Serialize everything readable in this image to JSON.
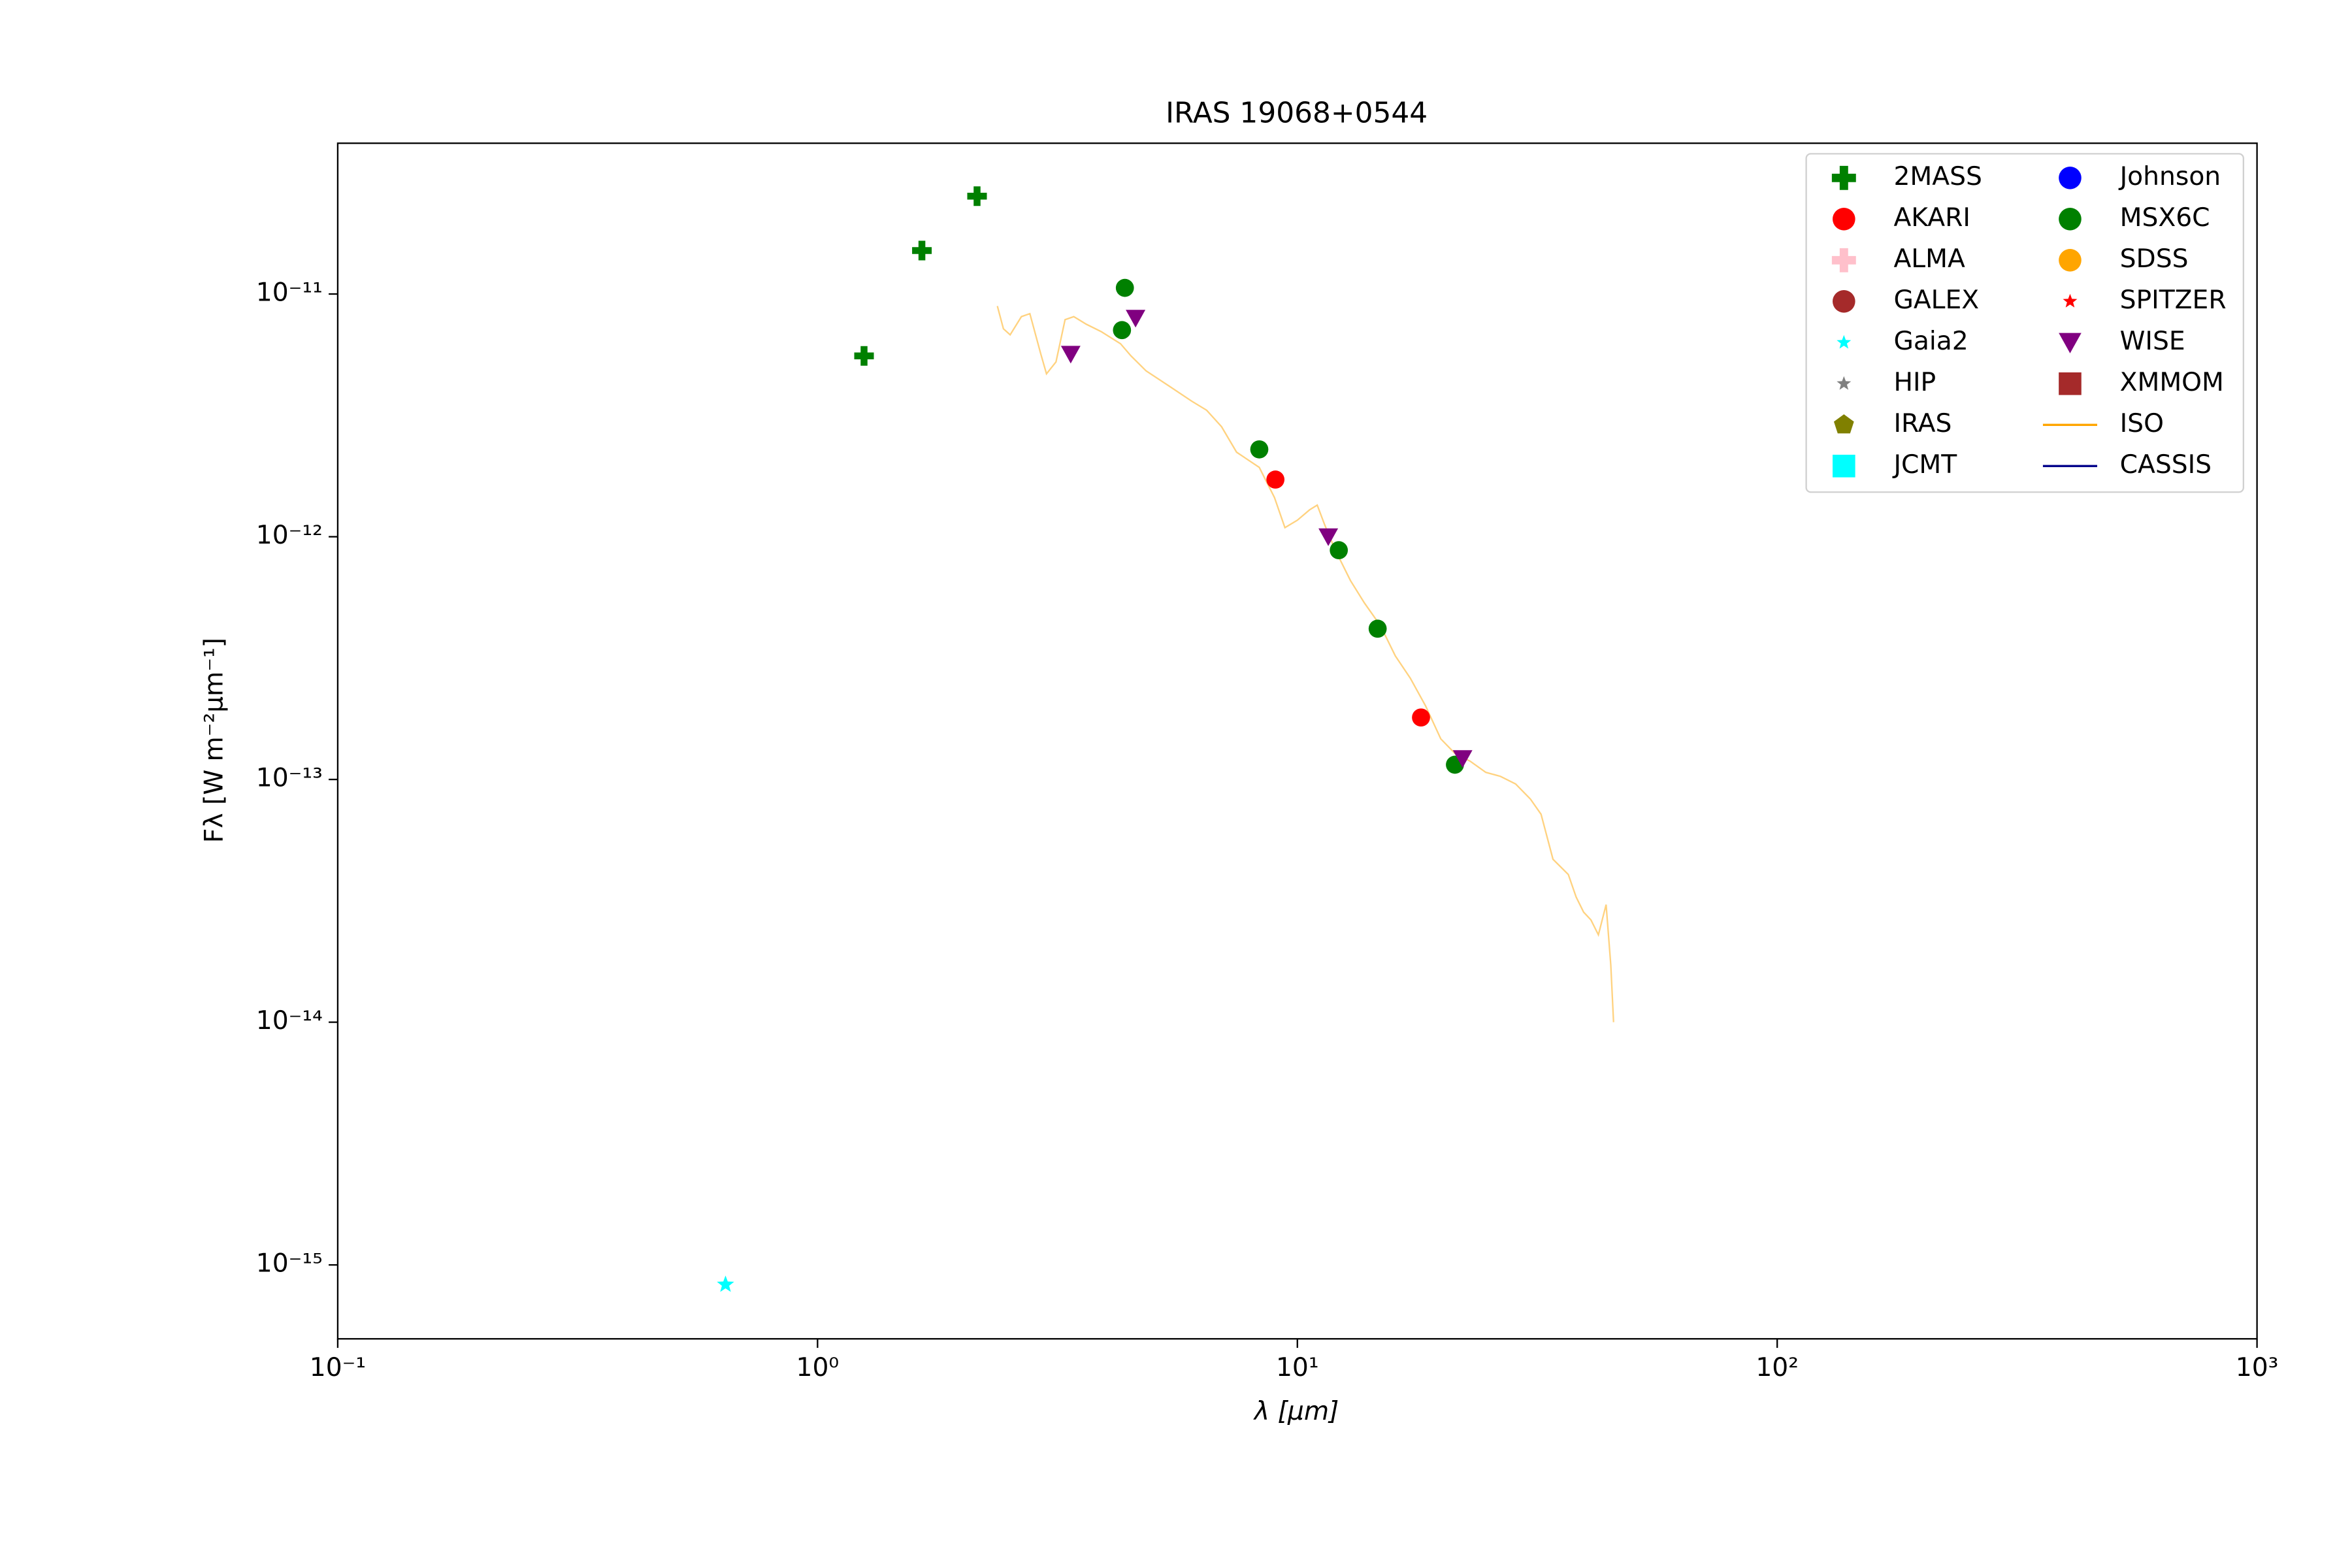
{
  "chart_data": {
    "type": "scatter",
    "title": "IRAS 19068+0544",
    "x_label": "λ [μm]",
    "y_label": "Fλ [W m⁻²μm⁻¹]",
    "x_scale": "log",
    "y_scale": "log",
    "xlim": [
      0.1,
      1000
    ],
    "ylim": [
      4.96e-16,
      4.18e-11
    ],
    "xticks": [
      {
        "value": 0.1,
        "label": "10⁻¹"
      },
      {
        "value": 1,
        "label": "10⁰"
      },
      {
        "value": 10,
        "label": "10¹"
      },
      {
        "value": 100,
        "label": "10²"
      },
      {
        "value": 1000,
        "label": "10³"
      }
    ],
    "yticks": [
      {
        "value": 1e-15,
        "label": "10⁻¹⁵"
      },
      {
        "value": 1e-14,
        "label": "10⁻¹⁴"
      },
      {
        "value": 1e-13,
        "label": "10⁻¹³"
      },
      {
        "value": 1e-12,
        "label": "10⁻¹²"
      },
      {
        "value": 1e-11,
        "label": "10⁻¹¹"
      }
    ],
    "legend": "upper right",
    "legend_columns": 2,
    "series": [
      {
        "name": "2MASS",
        "color": "#008000",
        "marker": "plus",
        "x": [
          1.25,
          1.65,
          2.15
        ],
        "values": [
          5.56e-12,
          1.51e-11,
          2.53e-11
        ]
      },
      {
        "name": "AKARI",
        "color": "#ff0000",
        "marker": "circle",
        "x": [
          9.0,
          18.1
        ],
        "values": [
          1.72e-12,
          1.8e-13
        ]
      },
      {
        "name": "ALMA",
        "color": "#ffc0cb",
        "marker": "plus",
        "x": [],
        "values": []
      },
      {
        "name": "GALEX",
        "color": "#a52a2a",
        "marker": "circle",
        "x": [],
        "values": []
      },
      {
        "name": "Gaia2",
        "color": "#00ffff",
        "marker": "star",
        "x": [
          0.643
        ],
        "values": [
          8.3e-16
        ]
      },
      {
        "name": "HIP",
        "color": "#808080",
        "marker": "star",
        "x": [],
        "values": []
      },
      {
        "name": "IRAS",
        "color": "#808000",
        "marker": "pentagon",
        "x": [],
        "values": []
      },
      {
        "name": "JCMT",
        "color": "#00ffff",
        "marker": "square",
        "x": [],
        "values": []
      },
      {
        "name": "Johnson",
        "color": "#0000ff",
        "marker": "circle",
        "x": [],
        "values": []
      },
      {
        "name": "MSX6C",
        "color": "#008000",
        "marker": "circle",
        "x": [
          4.37,
          4.31,
          8.33,
          12.2,
          14.7,
          21.3
        ],
        "values": [
          1.06e-11,
          7.1e-12,
          2.29e-12,
          8.8e-13,
          4.18e-13,
          1.15e-13
        ]
      },
      {
        "name": "SDSS",
        "color": "#ffa500",
        "marker": "circle",
        "x": [],
        "values": []
      },
      {
        "name": "SPITZER",
        "color": "#ff0000",
        "marker": "star",
        "x": [],
        "values": []
      },
      {
        "name": "WISE",
        "color": "#800080",
        "marker": "triangle_down",
        "x": [
          3.37,
          4.6,
          11.6,
          22.1
        ],
        "values": [
          5.65e-12,
          7.95e-12,
          1e-12,
          1.22e-13
        ]
      },
      {
        "name": "XMMOM",
        "color": "#a52a2a",
        "marker": "square",
        "x": [],
        "values": []
      },
      {
        "name": "ISO",
        "color": "#ffa500",
        "marker": "line",
        "x": [
          2.37,
          2.44,
          2.52,
          2.66,
          2.77,
          2.92,
          3.0,
          3.14,
          3.28,
          3.42,
          3.63,
          3.9,
          4.28,
          4.5,
          4.84,
          5.4,
          6.02,
          6.47,
          6.95,
          7.47,
          8.33,
          8.96,
          9.42,
          10,
          10.6,
          11.0,
          11.4,
          12.0,
          12.9,
          13.8,
          14.9,
          16.0,
          17.2,
          18.5,
          19.9,
          21.3,
          22.9,
          24.7,
          26.5,
          28.5,
          30.6,
          32.2,
          34.1,
          36.7,
          38.1,
          39.5,
          40.9,
          42.4,
          44.0,
          45.0,
          45.6
        ],
        "values": [
          8.92e-12,
          7.19e-12,
          6.79e-12,
          8.07e-12,
          8.3e-12,
          5.65e-12,
          4.69e-12,
          5.25e-12,
          7.84e-12,
          8.07e-12,
          7.51e-12,
          7e-12,
          6.24e-12,
          5.56e-12,
          4.82e-12,
          4.18e-12,
          3.62e-12,
          3.32e-12,
          2.84e-12,
          2.23e-12,
          1.93e-12,
          1.45e-12,
          1.09e-12,
          1.17e-12,
          1.29e-12,
          1.35e-12,
          1.12e-12,
          8.8e-13,
          6.6e-13,
          5.33e-13,
          4.3e-13,
          3.23e-13,
          2.61e-13,
          2.01e-13,
          1.47e-13,
          1.28e-13,
          1.19e-13,
          1.07e-13,
          1.03e-13,
          9.58e-14,
          8.3e-14,
          7.19e-14,
          4.69e-14,
          4.06e-14,
          3.28e-14,
          2.84e-14,
          2.64e-14,
          2.29e-14,
          3.05e-14,
          1.72e-14,
          1e-14
        ]
      },
      {
        "name": "CASSIS",
        "color": "#00008b",
        "marker": "line",
        "x": [],
        "values": []
      }
    ]
  }
}
